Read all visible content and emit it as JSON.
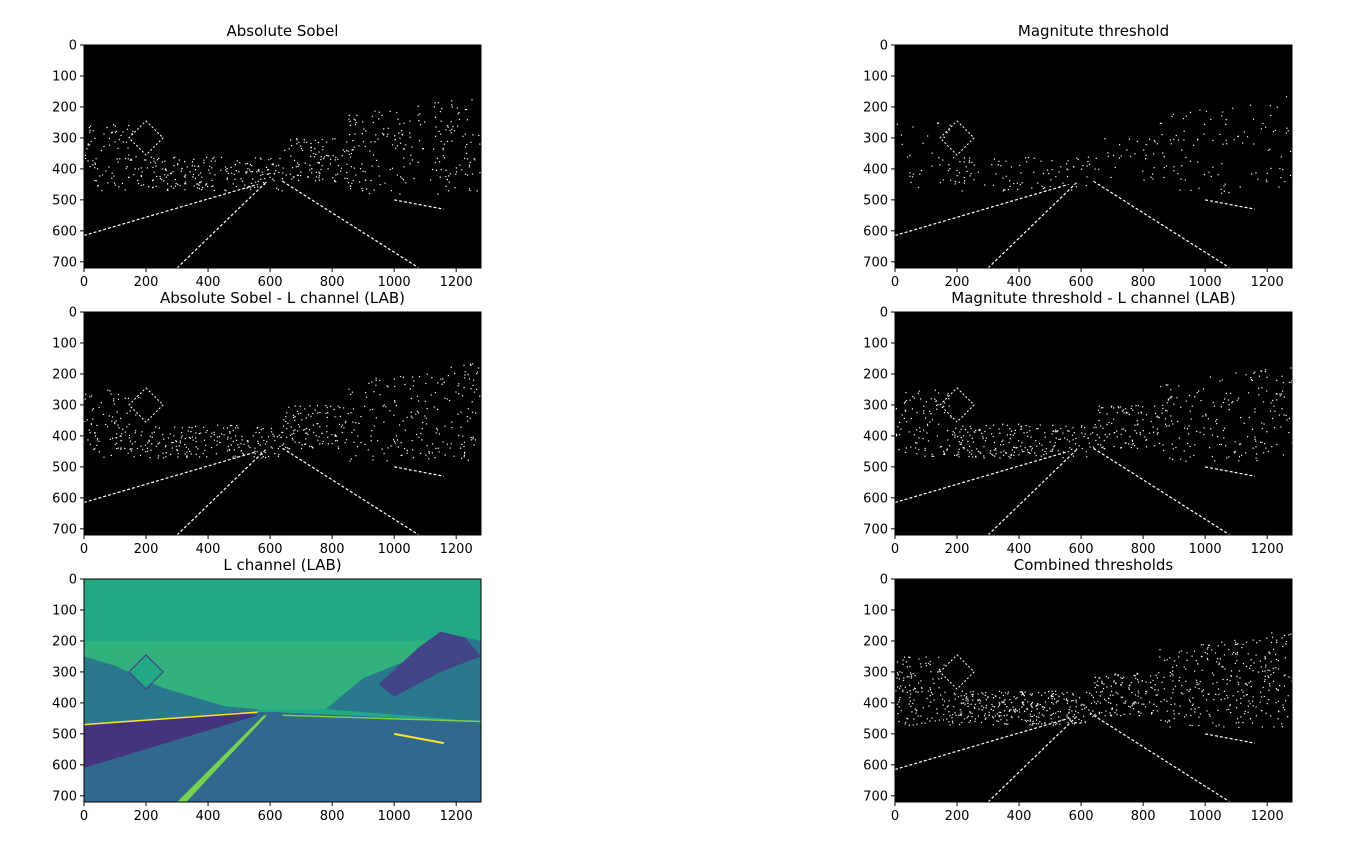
{
  "chart_data": [
    {
      "type": "image",
      "title": "Absolute Sobel",
      "render": "binary_edges",
      "xlim": [
        0,
        1280
      ],
      "ylim": [
        720,
        0
      ],
      "xticks": [
        0,
        200,
        400,
        600,
        800,
        1000,
        1200
      ],
      "yticks": [
        0,
        100,
        200,
        300,
        400,
        500,
        600,
        700
      ],
      "colors": {
        "background": "#000000",
        "foreground": "#ffffff"
      }
    },
    {
      "type": "image",
      "title": "Magnitute threshold",
      "render": "binary_edges",
      "xlim": [
        0,
        1280
      ],
      "ylim": [
        720,
        0
      ],
      "xticks": [
        0,
        200,
        400,
        600,
        800,
        1000,
        1200
      ],
      "yticks": [
        0,
        100,
        200,
        300,
        400,
        500,
        600,
        700
      ],
      "colors": {
        "background": "#000000",
        "foreground": "#ffffff"
      }
    },
    {
      "type": "image",
      "title": "Absolute Sobel - L channel (LAB)",
      "render": "binary_edges",
      "xlim": [
        0,
        1280
      ],
      "ylim": [
        720,
        0
      ],
      "xticks": [
        0,
        200,
        400,
        600,
        800,
        1000,
        1200
      ],
      "yticks": [
        0,
        100,
        200,
        300,
        400,
        500,
        600,
        700
      ],
      "colors": {
        "background": "#000000",
        "foreground": "#ffffff"
      }
    },
    {
      "type": "image",
      "title": "Magnitute threshold - L channel (LAB)",
      "render": "binary_edges",
      "xlim": [
        0,
        1280
      ],
      "ylim": [
        720,
        0
      ],
      "xticks": [
        0,
        200,
        400,
        600,
        800,
        1000,
        1200
      ],
      "yticks": [
        0,
        100,
        200,
        300,
        400,
        500,
        600,
        700
      ],
      "colors": {
        "background": "#000000",
        "foreground": "#ffffff"
      }
    },
    {
      "type": "image",
      "title": "L channel (LAB)",
      "render": "viridis_road",
      "xlim": [
        0,
        1280
      ],
      "ylim": [
        720,
        0
      ],
      "xticks": [
        0,
        200,
        400,
        600,
        800,
        1000,
        1200
      ],
      "yticks": [
        0,
        100,
        200,
        300,
        400,
        500,
        600,
        700
      ],
      "colors": {
        "sky": "#22a884",
        "sky_low": "#3cb878",
        "hills": "#2a788e",
        "trees": "#414487",
        "wall": "#46337e",
        "road": "#31688e",
        "lane": "#7ad151",
        "lane_bright": "#fde725"
      }
    },
    {
      "type": "image",
      "title": "Combined thresholds",
      "render": "binary_edges",
      "xlim": [
        0,
        1280
      ],
      "ylim": [
        720,
        0
      ],
      "xticks": [
        0,
        200,
        400,
        600,
        800,
        1000,
        1200
      ],
      "yticks": [
        0,
        100,
        200,
        300,
        400,
        500,
        600,
        700
      ],
      "colors": {
        "background": "#000000",
        "foreground": "#ffffff"
      }
    }
  ]
}
